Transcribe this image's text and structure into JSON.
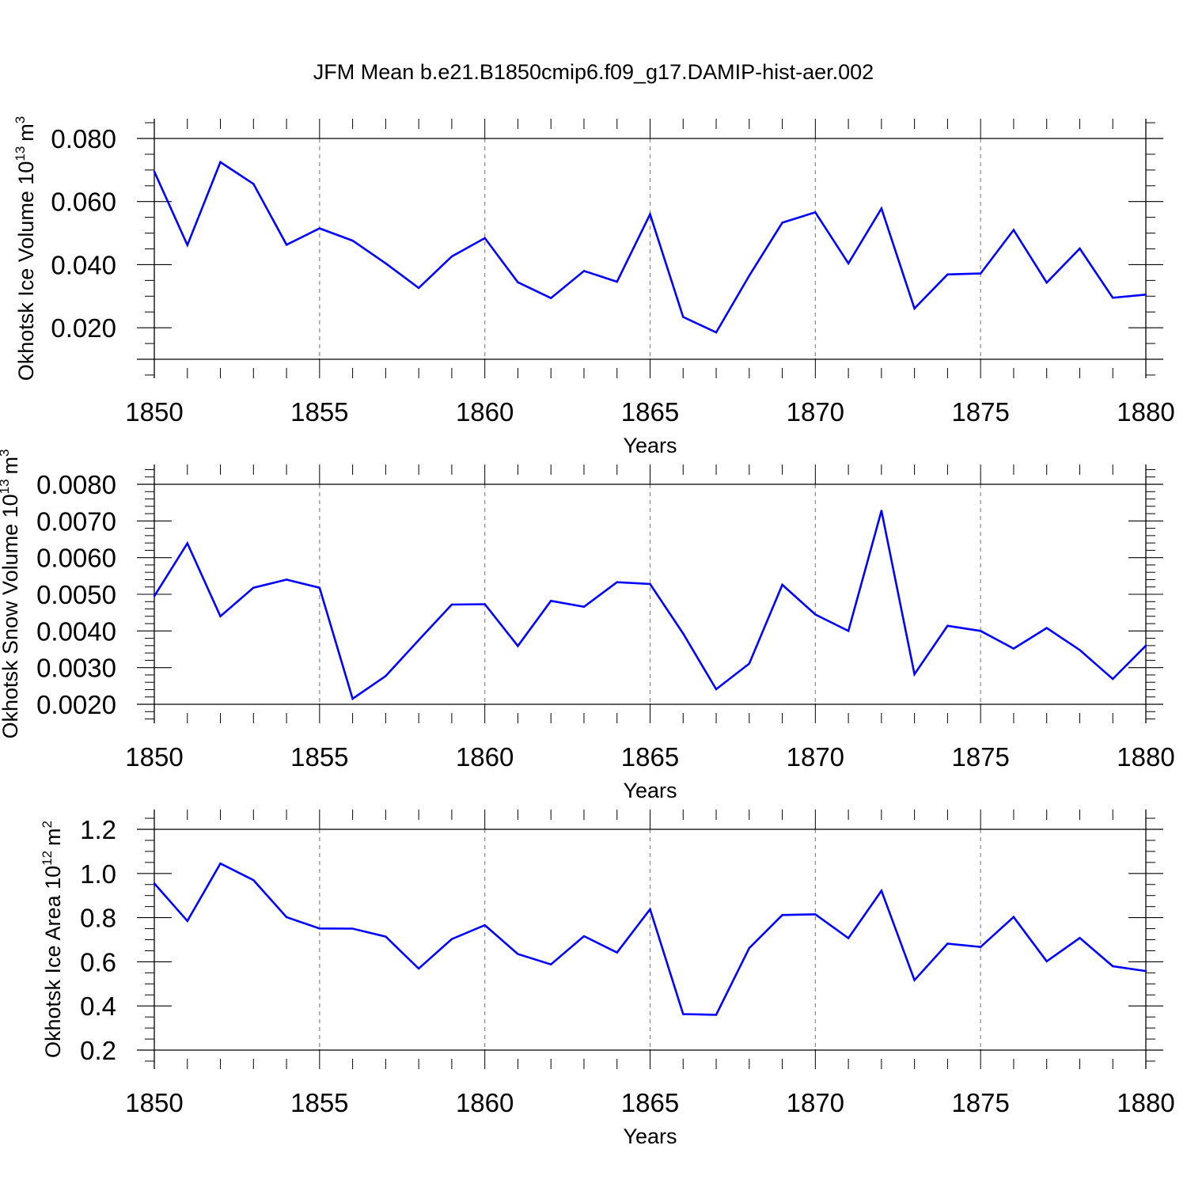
{
  "title": "JFM Mean b.e21.B1850cmip6.f09_g17.DAMIP-hist-aer.002",
  "line_color": "#0000ff",
  "chart_data": [
    {
      "type": "line",
      "ylabel_main": "Okhotsk Ice Volume 10",
      "ylabel_exp": "13",
      "ylabel_unit": "m",
      "ylabel_unit_exp": "3",
      "xlabel": "Years",
      "xlim": [
        1850,
        1880
      ],
      "ylim": [
        0.01,
        0.08
      ],
      "yticks": [
        0.02,
        0.04,
        0.06,
        0.08
      ],
      "ytick_labels": [
        "0.020",
        "0.040",
        "0.060",
        "0.080"
      ],
      "yminor_step": 0.005,
      "xticks": [
        1850,
        1855,
        1860,
        1865,
        1870,
        1875,
        1880
      ],
      "xtick_labels": [
        "1850",
        "1855",
        "1860",
        "1865",
        "1870",
        "1875",
        "1880"
      ],
      "grid": "dashed vertical at major x ticks",
      "x": [
        1850,
        1851,
        1852,
        1853,
        1854,
        1855,
        1856,
        1857,
        1858,
        1859,
        1860,
        1861,
        1862,
        1863,
        1864,
        1865,
        1866,
        1867,
        1868,
        1869,
        1870,
        1871,
        1872,
        1873,
        1874,
        1875,
        1876,
        1877,
        1878,
        1879,
        1880
      ],
      "values": [
        0.0695,
        0.0462,
        0.0725,
        0.0656,
        0.0463,
        0.0515,
        0.0476,
        0.0404,
        0.0326,
        0.0426,
        0.0484,
        0.0344,
        0.0294,
        0.038,
        0.0346,
        0.056,
        0.0234,
        0.0185,
        0.0365,
        0.0533,
        0.0566,
        0.0404,
        0.0578,
        0.0261,
        0.0369,
        0.0372,
        0.051,
        0.0343,
        0.0451,
        0.0295,
        0.0305
      ]
    },
    {
      "type": "line",
      "ylabel_main": "Okhotsk Snow Volume 10",
      "ylabel_exp": "13",
      "ylabel_unit": "m",
      "ylabel_unit_exp": "3",
      "xlabel": "Years",
      "xlim": [
        1850,
        1880
      ],
      "ylim": [
        0.002,
        0.008
      ],
      "yticks": [
        0.002,
        0.003,
        0.004,
        0.005,
        0.006,
        0.007,
        0.008
      ],
      "ytick_labels": [
        "0.0020",
        "0.0030",
        "0.0040",
        "0.0050",
        "0.0060",
        "0.0070",
        "0.0080"
      ],
      "yminor_step": 0.0002,
      "xticks": [
        1850,
        1855,
        1860,
        1865,
        1870,
        1875,
        1880
      ],
      "xtick_labels": [
        "1850",
        "1855",
        "1860",
        "1865",
        "1870",
        "1875",
        "1880"
      ],
      "grid": "dashed vertical at major x ticks",
      "x": [
        1850,
        1851,
        1852,
        1853,
        1854,
        1855,
        1856,
        1857,
        1858,
        1859,
        1860,
        1861,
        1862,
        1863,
        1864,
        1865,
        1866,
        1867,
        1868,
        1869,
        1870,
        1871,
        1872,
        1873,
        1874,
        1875,
        1876,
        1877,
        1878,
        1879,
        1880
      ],
      "values": [
        0.00495,
        0.00639,
        0.0044,
        0.00518,
        0.0054,
        0.00518,
        0.00215,
        0.00277,
        0.00375,
        0.00472,
        0.00473,
        0.00359,
        0.00482,
        0.00466,
        0.00533,
        0.00528,
        0.00393,
        0.00241,
        0.00311,
        0.00526,
        0.00445,
        0.004,
        0.00728,
        0.00282,
        0.00414,
        0.004,
        0.00352,
        0.00408,
        0.00348,
        0.00269,
        0.0036
      ]
    },
    {
      "type": "line",
      "ylabel_main": "Okhotsk Ice Area 10",
      "ylabel_exp": "12",
      "ylabel_unit": "m",
      "ylabel_unit_exp": "2",
      "xlabel": "Years",
      "xlim": [
        1850,
        1880
      ],
      "ylim": [
        0.2,
        1.2
      ],
      "yticks": [
        0.2,
        0.4,
        0.6,
        0.8,
        1.0,
        1.2
      ],
      "ytick_labels": [
        "0.2",
        "0.4",
        "0.6",
        "0.8",
        "1.0",
        "1.2"
      ],
      "yminor_step": 0.05,
      "xticks": [
        1850,
        1855,
        1860,
        1865,
        1870,
        1875,
        1880
      ],
      "xtick_labels": [
        "1850",
        "1855",
        "1860",
        "1865",
        "1870",
        "1875",
        "1880"
      ],
      "grid": "dashed vertical at major x ticks",
      "x": [
        1850,
        1851,
        1852,
        1853,
        1854,
        1855,
        1856,
        1857,
        1858,
        1859,
        1860,
        1861,
        1862,
        1863,
        1864,
        1865,
        1866,
        1867,
        1868,
        1869,
        1870,
        1871,
        1872,
        1873,
        1874,
        1875,
        1876,
        1877,
        1878,
        1879,
        1880
      ],
      "values": [
        0.955,
        0.785,
        1.045,
        0.97,
        0.802,
        0.751,
        0.75,
        0.714,
        0.569,
        0.703,
        0.766,
        0.635,
        0.588,
        0.716,
        0.642,
        0.838,
        0.363,
        0.36,
        0.662,
        0.812,
        0.815,
        0.707,
        0.922,
        0.517,
        0.682,
        0.667,
        0.803,
        0.602,
        0.708,
        0.58,
        0.558
      ]
    }
  ]
}
